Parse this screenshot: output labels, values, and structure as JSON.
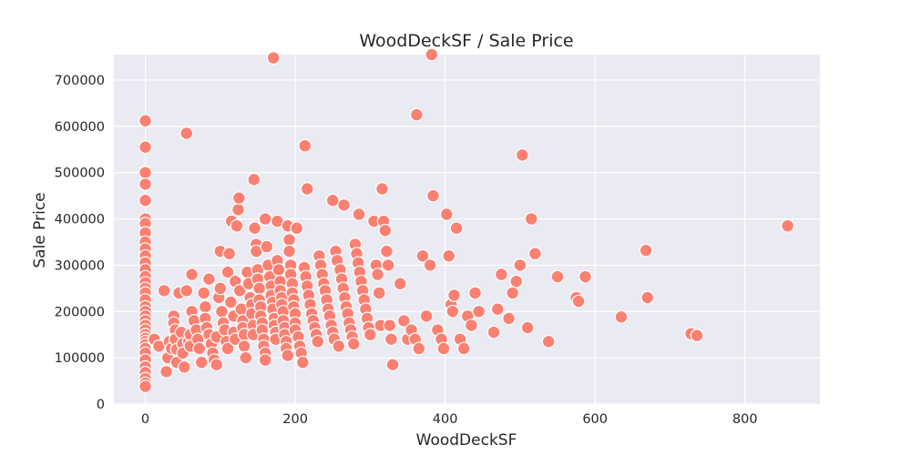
{
  "chart_data": {
    "type": "scatter",
    "title": "WoodDeckSF / Sale Price",
    "xlabel": "WoodDeckSF",
    "ylabel": "Sale Price",
    "xlim": [
      -42,
      900
    ],
    "ylim": [
      0,
      755000
    ],
    "xticks": [
      0,
      200,
      400,
      600,
      800
    ],
    "yticks": [
      0,
      100000,
      200000,
      300000,
      400000,
      500000,
      600000,
      700000
    ],
    "grid": true,
    "background": "#eaeaf2",
    "point_color": "#fa8072",
    "points": [
      [
        0,
        612000
      ],
      [
        0,
        555000
      ],
      [
        0,
        500000
      ],
      [
        0,
        475000
      ],
      [
        0,
        440000
      ],
      [
        0,
        400000
      ],
      [
        0,
        390000
      ],
      [
        0,
        370000
      ],
      [
        0,
        350000
      ],
      [
        0,
        335000
      ],
      [
        0,
        320000
      ],
      [
        0,
        305000
      ],
      [
        0,
        290000
      ],
      [
        0,
        275000
      ],
      [
        0,
        262000
      ],
      [
        0,
        250000
      ],
      [
        0,
        240000
      ],
      [
        0,
        225000
      ],
      [
        0,
        210000
      ],
      [
        0,
        200000
      ],
      [
        0,
        190000
      ],
      [
        0,
        180000
      ],
      [
        0,
        170000
      ],
      [
        0,
        160000
      ],
      [
        0,
        150000
      ],
      [
        0,
        142000
      ],
      [
        0,
        135000
      ],
      [
        0,
        128000
      ],
      [
        0,
        120000
      ],
      [
        0,
        110000
      ],
      [
        0,
        95000
      ],
      [
        0,
        80000
      ],
      [
        0,
        68000
      ],
      [
        0,
        55000
      ],
      [
        0,
        45000
      ],
      [
        0,
        38000
      ],
      [
        12,
        140000
      ],
      [
        18,
        125000
      ],
      [
        25,
        245000
      ],
      [
        28,
        70000
      ],
      [
        30,
        100000
      ],
      [
        32,
        135000
      ],
      [
        35,
        120000
      ],
      [
        38,
        190000
      ],
      [
        38,
        175000
      ],
      [
        40,
        160000
      ],
      [
        40,
        140000
      ],
      [
        42,
        118000
      ],
      [
        42,
        90000
      ],
      [
        45,
        240000
      ],
      [
        48,
        155000
      ],
      [
        50,
        130000
      ],
      [
        50,
        110000
      ],
      [
        52,
        80000
      ],
      [
        55,
        585000
      ],
      [
        55,
        245000
      ],
      [
        58,
        135000
      ],
      [
        60,
        150000
      ],
      [
        60,
        125000
      ],
      [
        62,
        200000
      ],
      [
        62,
        280000
      ],
      [
        65,
        180000
      ],
      [
        68,
        160000
      ],
      [
        70,
        140000
      ],
      [
        72,
        120000
      ],
      [
        75,
        90000
      ],
      [
        78,
        240000
      ],
      [
        80,
        210000
      ],
      [
        80,
        185000
      ],
      [
        82,
        165000
      ],
      [
        85,
        150000
      ],
      [
        85,
        270000
      ],
      [
        88,
        130000
      ],
      [
        90,
        110000
      ],
      [
        92,
        95000
      ],
      [
        95,
        85000
      ],
      [
        95,
        145000
      ],
      [
        98,
        230000
      ],
      [
        100,
        330000
      ],
      [
        100,
        250000
      ],
      [
        102,
        200000
      ],
      [
        104,
        175000
      ],
      [
        106,
        160000
      ],
      [
        108,
        135000
      ],
      [
        110,
        120000
      ],
      [
        110,
        285000
      ],
      [
        112,
        325000
      ],
      [
        114,
        220000
      ],
      [
        115,
        395000
      ],
      [
        118,
        190000
      ],
      [
        118,
        155000
      ],
      [
        120,
        140000
      ],
      [
        120,
        265000
      ],
      [
        122,
        385000
      ],
      [
        124,
        420000
      ],
      [
        125,
        445000
      ],
      [
        126,
        245000
      ],
      [
        128,
        205000
      ],
      [
        130,
        180000
      ],
      [
        130,
        165000
      ],
      [
        132,
        150000
      ],
      [
        132,
        125000
      ],
      [
        134,
        100000
      ],
      [
        136,
        285000
      ],
      [
        138,
        260000
      ],
      [
        140,
        230000
      ],
      [
        142,
        215000
      ],
      [
        142,
        195000
      ],
      [
        144,
        170000
      ],
      [
        144,
        150000
      ],
      [
        145,
        485000
      ],
      [
        146,
        380000
      ],
      [
        148,
        345000
      ],
      [
        148,
        330000
      ],
      [
        150,
        290000
      ],
      [
        150,
        270000
      ],
      [
        152,
        250000
      ],
      [
        152,
        225000
      ],
      [
        154,
        210000
      ],
      [
        154,
        190000
      ],
      [
        156,
        175000
      ],
      [
        156,
        160000
      ],
      [
        158,
        140000
      ],
      [
        158,
        125000
      ],
      [
        160,
        110000
      ],
      [
        160,
        95000
      ],
      [
        160,
        400000
      ],
      [
        162,
        340000
      ],
      [
        164,
        300000
      ],
      [
        166,
        275000
      ],
      [
        168,
        255000
      ],
      [
        168,
        235000
      ],
      [
        170,
        220000
      ],
      [
        170,
        205000
      ],
      [
        171,
        748000
      ],
      [
        172,
        185000
      ],
      [
        172,
        170000
      ],
      [
        174,
        155000
      ],
      [
        174,
        140000
      ],
      [
        176,
        395000
      ],
      [
        176,
        310000
      ],
      [
        178,
        290000
      ],
      [
        180,
        265000
      ],
      [
        180,
        245000
      ],
      [
        182,
        230000
      ],
      [
        182,
        215000
      ],
      [
        184,
        200000
      ],
      [
        184,
        180000
      ],
      [
        186,
        165000
      ],
      [
        186,
        150000
      ],
      [
        188,
        135000
      ],
      [
        188,
        120000
      ],
      [
        190,
        105000
      ],
      [
        190,
        385000
      ],
      [
        192,
        355000
      ],
      [
        192,
        330000
      ],
      [
        194,
        300000
      ],
      [
        194,
        280000
      ],
      [
        196,
        260000
      ],
      [
        196,
        240000
      ],
      [
        198,
        225000
      ],
      [
        198,
        210000
      ],
      [
        200,
        195000
      ],
      [
        200,
        175000
      ],
      [
        200,
        160000
      ],
      [
        202,
        380000
      ],
      [
        204,
        145000
      ],
      [
        206,
        125000
      ],
      [
        208,
        110000
      ],
      [
        210,
        90000
      ],
      [
        212,
        295000
      ],
      [
        213,
        558000
      ],
      [
        214,
        275000
      ],
      [
        216,
        465000
      ],
      [
        216,
        255000
      ],
      [
        218,
        235000
      ],
      [
        220,
        215000
      ],
      [
        222,
        195000
      ],
      [
        224,
        180000
      ],
      [
        226,
        165000
      ],
      [
        228,
        150000
      ],
      [
        230,
        135000
      ],
      [
        232,
        320000
      ],
      [
        234,
        300000
      ],
      [
        236,
        280000
      ],
      [
        238,
        260000
      ],
      [
        240,
        245000
      ],
      [
        242,
        225000
      ],
      [
        244,
        205000
      ],
      [
        246,
        190000
      ],
      [
        248,
        170000
      ],
      [
        250,
        440000
      ],
      [
        250,
        155000
      ],
      [
        252,
        140000
      ],
      [
        254,
        330000
      ],
      [
        256,
        310000
      ],
      [
        258,
        125000
      ],
      [
        260,
        290000
      ],
      [
        262,
        270000
      ],
      [
        264,
        250000
      ],
      [
        265,
        430000
      ],
      [
        266,
        230000
      ],
      [
        268,
        210000
      ],
      [
        270,
        195000
      ],
      [
        272,
        175000
      ],
      [
        274,
        160000
      ],
      [
        276,
        145000
      ],
      [
        278,
        130000
      ],
      [
        280,
        345000
      ],
      [
        282,
        325000
      ],
      [
        284,
        305000
      ],
      [
        285,
        410000
      ],
      [
        286,
        285000
      ],
      [
        288,
        265000
      ],
      [
        290,
        245000
      ],
      [
        292,
        225000
      ],
      [
        294,
        205000
      ],
      [
        296,
        185000
      ],
      [
        298,
        165000
      ],
      [
        300,
        150000
      ],
      [
        305,
        395000
      ],
      [
        308,
        300000
      ],
      [
        310,
        280000
      ],
      [
        312,
        240000
      ],
      [
        314,
        170000
      ],
      [
        316,
        465000
      ],
      [
        318,
        395000
      ],
      [
        320,
        375000
      ],
      [
        322,
        330000
      ],
      [
        324,
        300000
      ],
      [
        326,
        170000
      ],
      [
        328,
        140000
      ],
      [
        330,
        85000
      ],
      [
        340,
        260000
      ],
      [
        345,
        180000
      ],
      [
        350,
        140000
      ],
      [
        355,
        160000
      ],
      [
        360,
        140000
      ],
      [
        362,
        625000
      ],
      [
        365,
        120000
      ],
      [
        370,
        320000
      ],
      [
        375,
        190000
      ],
      [
        380,
        300000
      ],
      [
        382,
        755000
      ],
      [
        384,
        450000
      ],
      [
        390,
        160000
      ],
      [
        395,
        140000
      ],
      [
        398,
        120000
      ],
      [
        402,
        410000
      ],
      [
        405,
        320000
      ],
      [
        408,
        215000
      ],
      [
        410,
        200000
      ],
      [
        412,
        235000
      ],
      [
        415,
        380000
      ],
      [
        420,
        140000
      ],
      [
        425,
        120000
      ],
      [
        430,
        190000
      ],
      [
        435,
        170000
      ],
      [
        440,
        240000
      ],
      [
        445,
        200000
      ],
      [
        465,
        155000
      ],
      [
        470,
        205000
      ],
      [
        475,
        280000
      ],
      [
        485,
        185000
      ],
      [
        490,
        240000
      ],
      [
        495,
        265000
      ],
      [
        500,
        300000
      ],
      [
        503,
        538000
      ],
      [
        510,
        165000
      ],
      [
        515,
        400000
      ],
      [
        520,
        325000
      ],
      [
        538,
        135000
      ],
      [
        550,
        275000
      ],
      [
        575,
        230000
      ],
      [
        578,
        222000
      ],
      [
        587,
        275000
      ],
      [
        635,
        188000
      ],
      [
        668,
        332000
      ],
      [
        670,
        230000
      ],
      [
        728,
        152000
      ],
      [
        736,
        148000
      ],
      [
        857,
        385000
      ]
    ]
  }
}
